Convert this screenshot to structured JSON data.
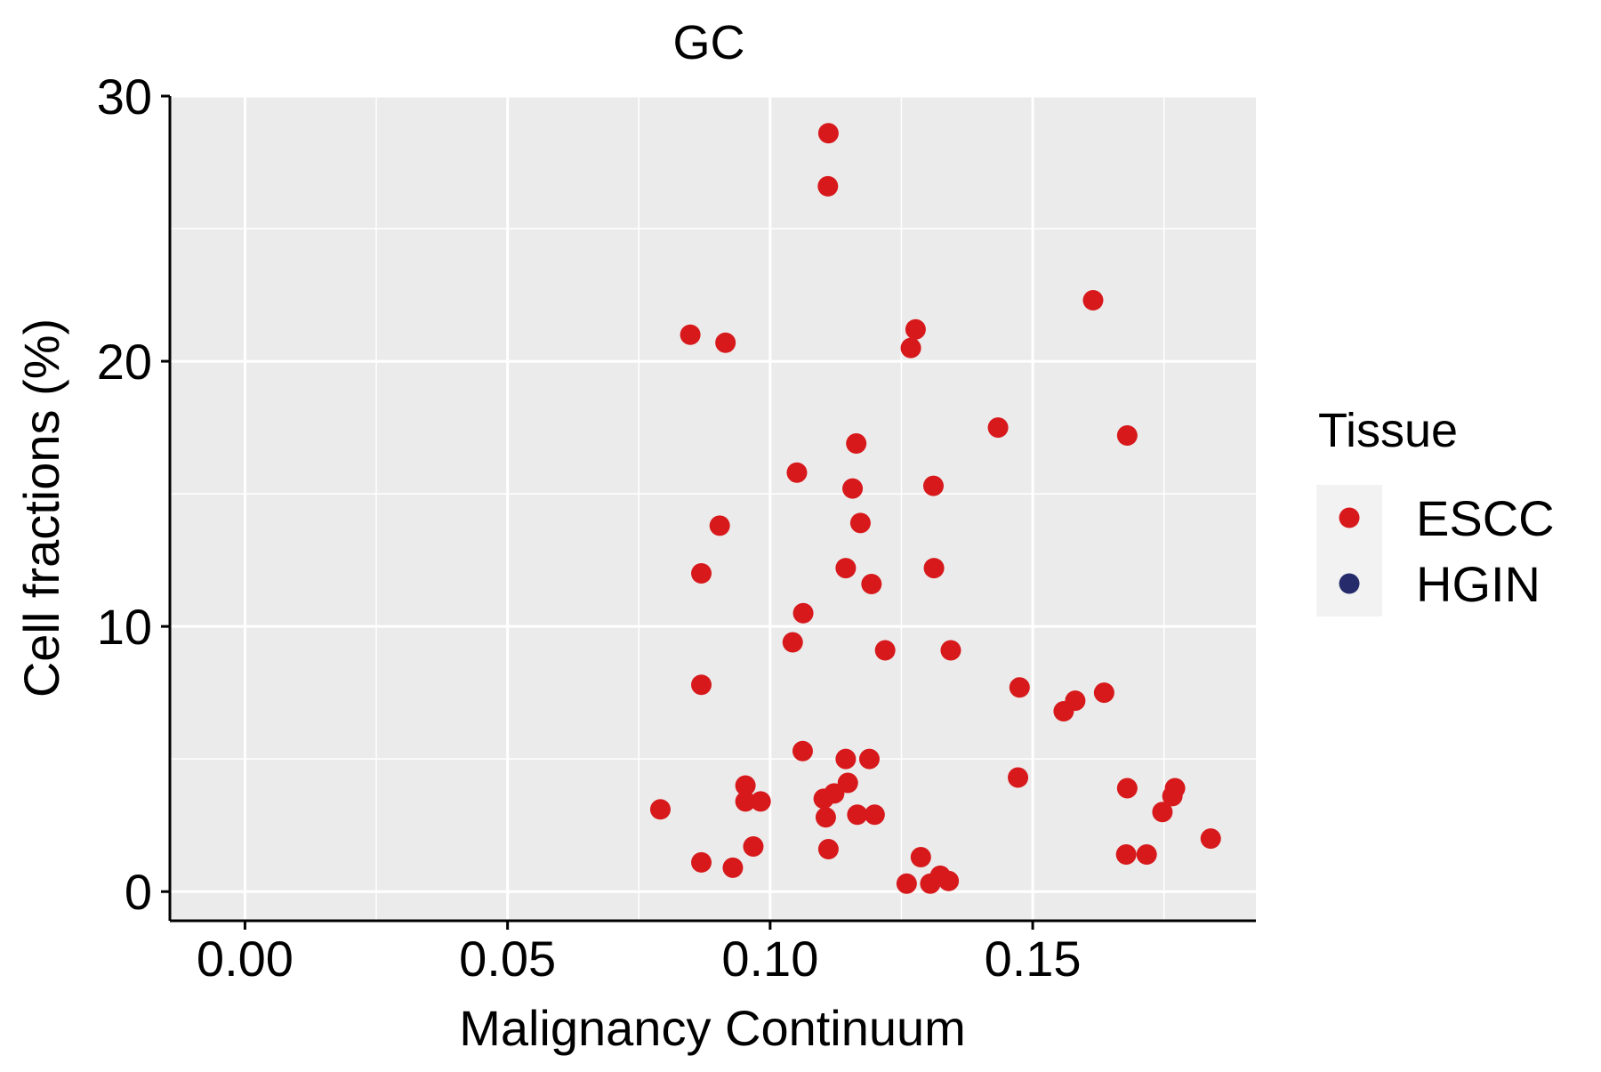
{
  "chart_data": {
    "type": "scatter",
    "title": "GC",
    "xlabel": "Malignancy Continuum",
    "ylabel": "Cell fractions (%)",
    "xlim": [
      -0.0143,
      0.1925
    ],
    "ylim": [
      -1.1,
      30
    ],
    "x_ticks": [
      0.0,
      0.05,
      0.1,
      0.15
    ],
    "x_tick_labels": [
      "0.00",
      "0.05",
      "0.10",
      "0.15"
    ],
    "y_ticks": [
      0,
      10,
      20,
      30
    ],
    "y_tick_labels": [
      "0",
      "10",
      "20",
      "30"
    ],
    "grid": true,
    "legend": {
      "title": "Tissue",
      "position": "right",
      "entries": [
        {
          "name": "ESCC",
          "color": "#d7191c"
        },
        {
          "name": "HGIN",
          "color": "#262b6b"
        }
      ]
    },
    "series": [
      {
        "name": "ESCC",
        "color": "#d7191c",
        "points": [
          [
            0.1111,
            28.6
          ],
          [
            0.111,
            26.6
          ],
          [
            0.1615,
            22.3
          ],
          [
            0.0848,
            21.0
          ],
          [
            0.0915,
            20.7
          ],
          [
            0.1277,
            21.2
          ],
          [
            0.1268,
            20.5
          ],
          [
            0.1434,
            17.5
          ],
          [
            0.168,
            17.2
          ],
          [
            0.1164,
            16.9
          ],
          [
            0.1051,
            15.8
          ],
          [
            0.1157,
            15.2
          ],
          [
            0.1311,
            15.3
          ],
          [
            0.1172,
            13.9
          ],
          [
            0.0904,
            13.8
          ],
          [
            0.1144,
            12.2
          ],
          [
            0.1312,
            12.2
          ],
          [
            0.0869,
            12.0
          ],
          [
            0.1193,
            11.6
          ],
          [
            0.1063,
            10.5
          ],
          [
            0.1043,
            9.4
          ],
          [
            0.1219,
            9.1
          ],
          [
            0.1344,
            9.1
          ],
          [
            0.0869,
            7.8
          ],
          [
            0.1475,
            7.7
          ],
          [
            0.1581,
            7.2
          ],
          [
            0.1636,
            7.5
          ],
          [
            0.1559,
            6.8
          ],
          [
            0.1062,
            5.3
          ],
          [
            0.1144,
            5.0
          ],
          [
            0.1189,
            5.0
          ],
          [
            0.1472,
            4.3
          ],
          [
            0.0953,
            4.0
          ],
          [
            0.1148,
            4.1
          ],
          [
            0.1122,
            3.7
          ],
          [
            0.1102,
            3.5
          ],
          [
            0.0953,
            3.4
          ],
          [
            0.0982,
            3.4
          ],
          [
            0.0791,
            3.1
          ],
          [
            0.1106,
            2.8
          ],
          [
            0.1166,
            2.9
          ],
          [
            0.1199,
            2.9
          ],
          [
            0.168,
            3.9
          ],
          [
            0.1771,
            3.9
          ],
          [
            0.1766,
            3.6
          ],
          [
            0.1747,
            3.0
          ],
          [
            0.1839,
            2.0
          ],
          [
            0.0968,
            1.7
          ],
          [
            0.1111,
            1.6
          ],
          [
            0.0869,
            1.1
          ],
          [
            0.0929,
            0.9
          ],
          [
            0.1287,
            1.3
          ],
          [
            0.1678,
            1.4
          ],
          [
            0.1717,
            1.4
          ],
          [
            0.126,
            0.3
          ],
          [
            0.1305,
            0.3
          ],
          [
            0.1324,
            0.6
          ],
          [
            0.134,
            0.4
          ]
        ]
      },
      {
        "name": "HGIN",
        "color": "#262b6b",
        "points": []
      }
    ]
  }
}
